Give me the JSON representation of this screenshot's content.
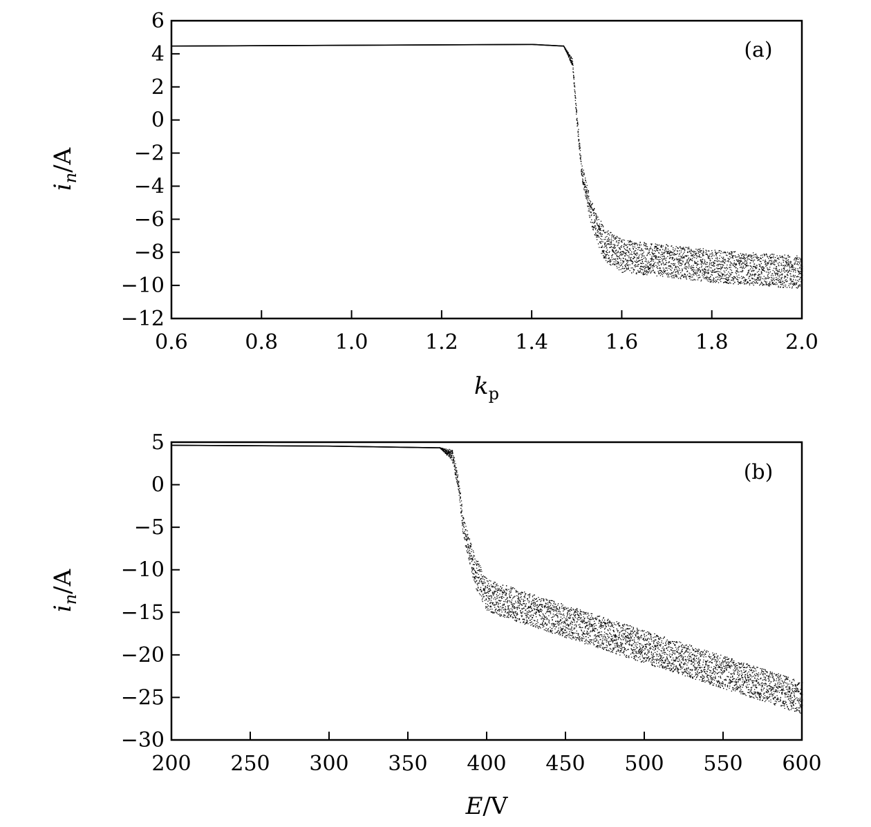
{
  "chart_data": [
    {
      "type": "scatter",
      "panel_label": "(a)",
      "xlabel_main": "k",
      "xlabel_sub": "p",
      "ylabel_main": "i",
      "ylabel_sub": "n",
      "ylabel_unit": "/A",
      "xlim": [
        0.6,
        2.0
      ],
      "ylim": [
        -12,
        6
      ],
      "xticks": [
        0.6,
        0.8,
        1.0,
        1.2,
        1.4,
        1.6,
        1.8,
        2.0
      ],
      "xtick_labels": [
        "0.6",
        "0.8",
        "1.0",
        "1.2",
        "1.4",
        "1.6",
        "1.8",
        "2.0"
      ],
      "yticks": [
        6,
        4,
        2,
        0,
        -2,
        -4,
        -6,
        -8,
        -10,
        -12
      ],
      "ytick_labels": [
        "6",
        "4",
        "2",
        "0",
        "−2",
        "−4",
        "−6",
        "−8",
        "−10",
        "−12"
      ],
      "grid": false,
      "marker_color": "#000000",
      "bifurcation_points": [
        [
          0.6,
          4.5
        ],
        [
          1.0,
          4.55
        ],
        [
          1.4,
          4.6
        ],
        [
          1.47,
          4.5
        ],
        [
          1.49,
          3.5
        ],
        [
          1.5,
          0
        ],
        [
          1.51,
          -3
        ],
        [
          1.53,
          -5.5
        ],
        [
          1.56,
          -7.5
        ],
        [
          1.6,
          -8.2
        ],
        [
          1.8,
          -8.8
        ],
        [
          2.0,
          -9.2
        ]
      ]
    },
    {
      "type": "scatter",
      "panel_label": "(b)",
      "xlabel_main": "E",
      "xlabel_unit": "/V",
      "ylabel_main": "i",
      "ylabel_sub": "n",
      "ylabel_unit": "/A",
      "xlim": [
        200,
        600
      ],
      "ylim": [
        -30,
        5
      ],
      "xticks": [
        200,
        250,
        300,
        350,
        400,
        450,
        500,
        550,
        600
      ],
      "xtick_labels": [
        "200",
        "250",
        "300",
        "350",
        "400",
        "450",
        "500",
        "550",
        "600"
      ],
      "yticks": [
        5,
        0,
        -5,
        -10,
        -15,
        -20,
        -25,
        -30
      ],
      "ytick_labels": [
        "5",
        "0",
        "−5",
        "−10",
        "−15",
        "−20",
        "−25",
        "−30"
      ],
      "grid": false,
      "marker_color": "#000000",
      "bifurcation_points": [
        [
          200,
          4.7
        ],
        [
          300,
          4.6
        ],
        [
          370,
          4.4
        ],
        [
          378,
          3.5
        ],
        [
          382,
          0
        ],
        [
          385,
          -5
        ],
        [
          392,
          -10
        ],
        [
          400,
          -13
        ],
        [
          450,
          -16
        ],
        [
          500,
          -19
        ],
        [
          550,
          -22
        ],
        [
          600,
          -25
        ]
      ]
    }
  ]
}
